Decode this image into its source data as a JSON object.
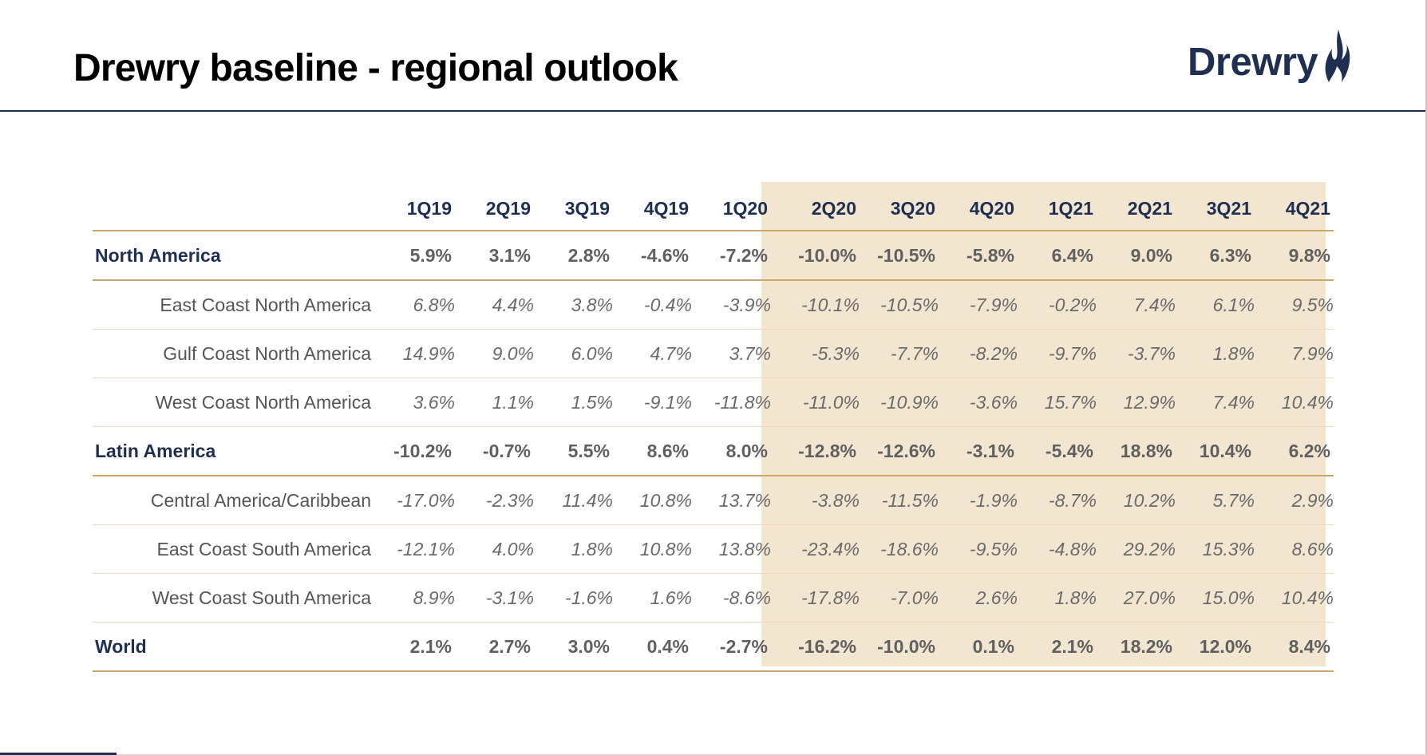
{
  "slide": {
    "title": "Drewry baseline - regional outlook",
    "logo_text": "Drewry",
    "brand_color": "#1e2f52",
    "accent_color": "#c9a76b",
    "forecast_shading_color": "#f2e6d0"
  },
  "table": {
    "columns": [
      "1Q19",
      "2Q19",
      "3Q19",
      "4Q19",
      "1Q20",
      "2Q20",
      "3Q20",
      "4Q20",
      "1Q21",
      "2Q21",
      "3Q21",
      "4Q21"
    ],
    "rows": [
      {
        "label": "North America",
        "type": "region",
        "values": [
          "5.9%",
          "3.1%",
          "2.8%",
          "-4.6%",
          "-7.2%",
          "-10.0%",
          "-10.5%",
          "-5.8%",
          "6.4%",
          "9.0%",
          "6.3%",
          "9.8%"
        ]
      },
      {
        "label": "East Coast North America",
        "type": "sub",
        "values": [
          "6.8%",
          "4.4%",
          "3.8%",
          "-0.4%",
          "-3.9%",
          "-10.1%",
          "-10.5%",
          "-7.9%",
          "-0.2%",
          "7.4%",
          "6.1%",
          "9.5%"
        ]
      },
      {
        "label": "Gulf Coast North America",
        "type": "sub",
        "values": [
          "14.9%",
          "9.0%",
          "6.0%",
          "4.7%",
          "3.7%",
          "-5.3%",
          "-7.7%",
          "-8.2%",
          "-9.7%",
          "-3.7%",
          "1.8%",
          "7.9%"
        ]
      },
      {
        "label": "West Coast North America",
        "type": "sub",
        "values": [
          "3.6%",
          "1.1%",
          "1.5%",
          "-9.1%",
          "-11.8%",
          "-11.0%",
          "-10.9%",
          "-3.6%",
          "15.7%",
          "12.9%",
          "7.4%",
          "10.4%"
        ]
      },
      {
        "label": "Latin America",
        "type": "region",
        "values": [
          "-10.2%",
          "-0.7%",
          "5.5%",
          "8.6%",
          "8.0%",
          "-12.8%",
          "-12.6%",
          "-3.1%",
          "-5.4%",
          "18.8%",
          "10.4%",
          "6.2%"
        ]
      },
      {
        "label": "Central America/Caribbean",
        "type": "sub",
        "values": [
          "-17.0%",
          "-2.3%",
          "11.4%",
          "10.8%",
          "13.7%",
          "-3.8%",
          "-11.5%",
          "-1.9%",
          "-8.7%",
          "10.2%",
          "5.7%",
          "2.9%"
        ]
      },
      {
        "label": "East Coast South America",
        "type": "sub",
        "values": [
          "-12.1%",
          "4.0%",
          "1.8%",
          "10.8%",
          "13.8%",
          "-23.4%",
          "-18.6%",
          "-9.5%",
          "-4.8%",
          "29.2%",
          "15.3%",
          "8.6%"
        ]
      },
      {
        "label": "West Coast South America",
        "type": "sub",
        "values": [
          "8.9%",
          "-3.1%",
          "-1.6%",
          "1.6%",
          "-8.6%",
          "-17.8%",
          "-7.0%",
          "2.6%",
          "1.8%",
          "27.0%",
          "15.0%",
          "10.4%"
        ]
      },
      {
        "label": "World",
        "type": "region",
        "values": [
          "2.1%",
          "2.7%",
          "3.0%",
          "0.4%",
          "-2.7%",
          "-16.2%",
          "-10.0%",
          "0.1%",
          "2.1%",
          "18.2%",
          "12.0%",
          "8.4%"
        ]
      }
    ]
  }
}
